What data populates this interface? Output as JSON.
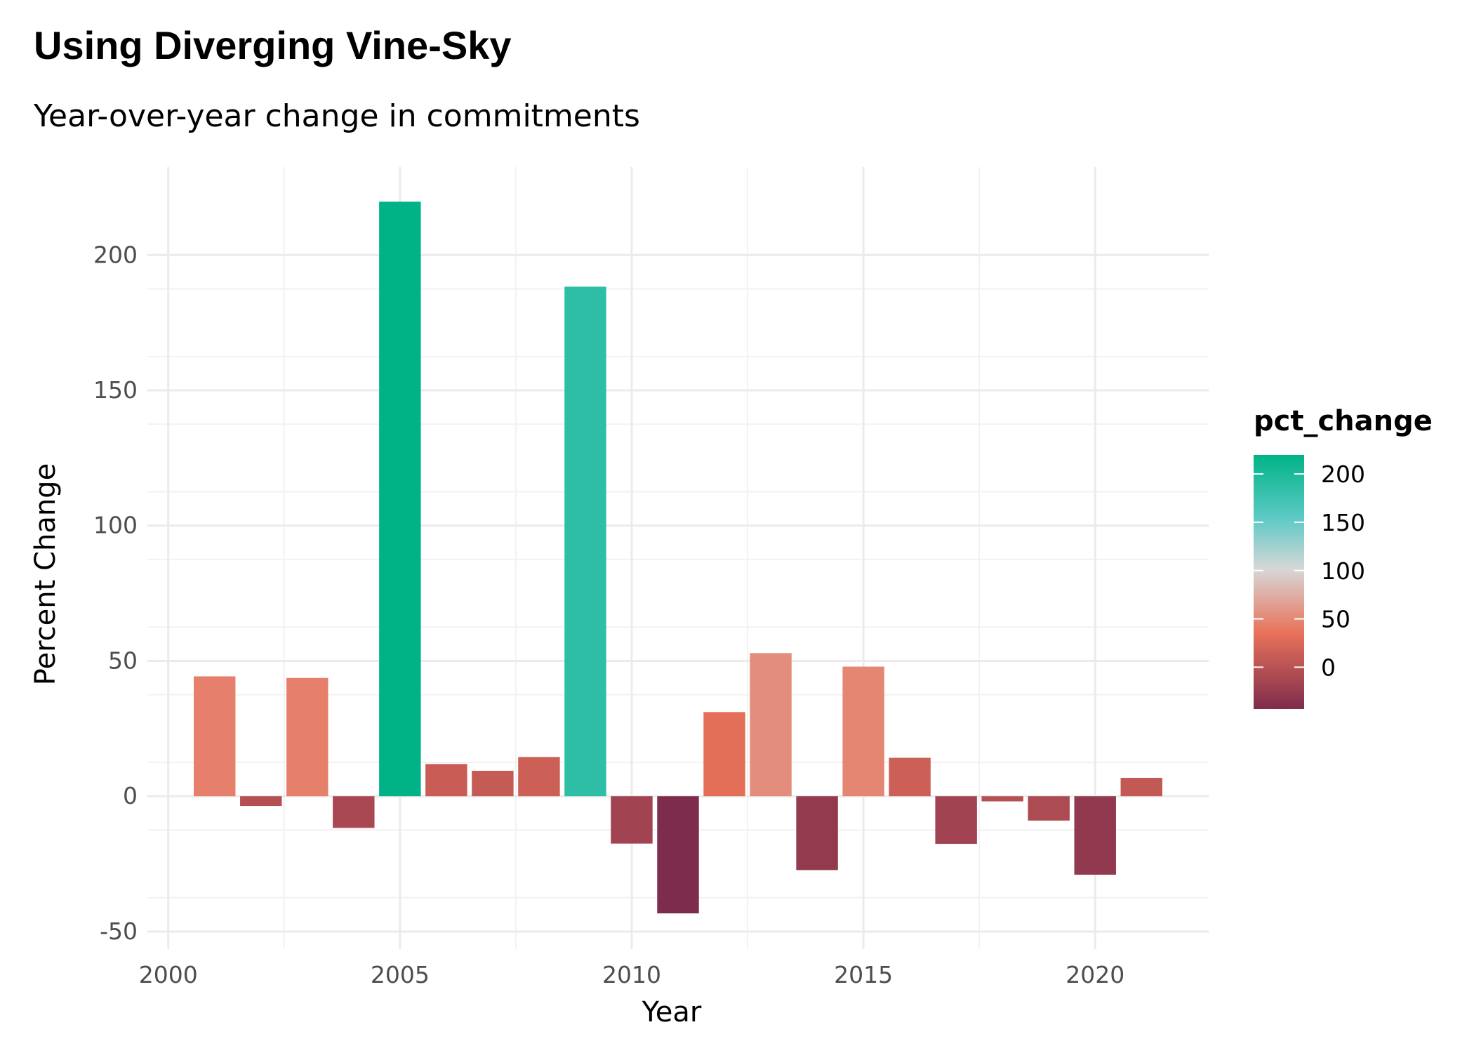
{
  "chart_data": {
    "type": "bar",
    "title": "Using Diverging Vine-Sky",
    "subtitle": "Year-over-year change in commitments",
    "xlabel": "Year",
    "ylabel": "Percent Change",
    "x": [
      2001,
      2002,
      2003,
      2004,
      2005,
      2006,
      2007,
      2008,
      2009,
      2010,
      2011,
      2012,
      2013,
      2014,
      2015,
      2016,
      2017,
      2018,
      2019,
      2020,
      2021
    ],
    "values": [
      44.3,
      -3.6,
      43.7,
      -11.7,
      219.7,
      11.9,
      9.4,
      14.5,
      188.3,
      -17.5,
      -43.3,
      31.1,
      52.9,
      -27.3,
      47.9,
      14.2,
      -17.6,
      -1.9,
      -9.0,
      -29.0,
      6.8
    ],
    "xlim": [
      1999.55,
      2022.45
    ],
    "ylim": [
      -56.5,
      232.5
    ],
    "xticks": [
      2000,
      2005,
      2010,
      2015,
      2020
    ],
    "yticks": [
      -50,
      0,
      50,
      100,
      150,
      200
    ],
    "grid": true,
    "legend": {
      "title": "pct_change",
      "placement": "right",
      "ticks": [
        0,
        50,
        100,
        150,
        200
      ],
      "range": [
        -43.3,
        219.7
      ]
    },
    "colors": {
      "scale": [
        "#7e2c4c",
        "#e8725a",
        "#d7d7d7",
        "#5dcac6",
        "#00b386"
      ]
    }
  }
}
